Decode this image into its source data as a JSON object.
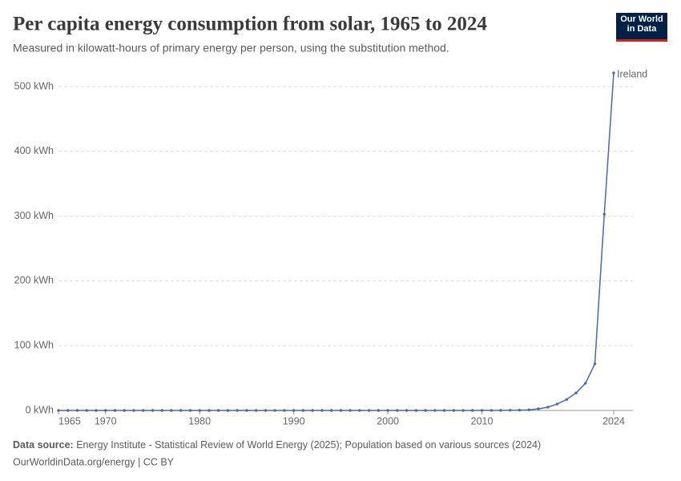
{
  "logo": "Our World in Data",
  "chart_data": {
    "type": "line",
    "title": "Per capita energy consumption from solar, 1965 to 2024",
    "subtitle": "Measured in kilowatt-hours of primary energy per person, using the substitution method.",
    "source_label": "Data source:",
    "source": "Energy Institute - Statistical Review of World Energy (2025); Population based on various sources (2024)",
    "footer": "OurWorldinData.org/energy | CC BY",
    "x": [
      1965,
      1966,
      1967,
      1968,
      1969,
      1970,
      1971,
      1972,
      1973,
      1974,
      1975,
      1976,
      1977,
      1978,
      1979,
      1980,
      1981,
      1982,
      1983,
      1984,
      1985,
      1986,
      1987,
      1988,
      1989,
      1990,
      1991,
      1992,
      1993,
      1994,
      1995,
      1996,
      1997,
      1998,
      1999,
      2000,
      2001,
      2002,
      2003,
      2004,
      2005,
      2006,
      2007,
      2008,
      2009,
      2010,
      2011,
      2012,
      2013,
      2014,
      2015,
      2016,
      2017,
      2018,
      2019,
      2020,
      2021,
      2022,
      2023,
      2024
    ],
    "series": [
      {
        "name": "Ireland",
        "color": "#4c6a9c",
        "values": [
          0,
          0,
          0,
          0,
          0,
          0,
          0,
          0,
          0,
          0,
          0,
          0,
          0,
          0,
          0,
          0,
          0,
          0,
          0,
          0,
          0,
          0,
          0,
          0,
          0,
          0,
          0,
          0,
          0,
          0,
          0,
          0,
          0,
          0,
          0,
          0,
          0,
          0,
          0,
          0,
          0,
          0,
          0,
          0,
          0,
          0.1,
          0.1,
          0.2,
          0.3,
          0.5,
          1,
          2.5,
          5,
          10,
          17,
          27,
          42,
          72,
          303,
          521
        ]
      }
    ],
    "xlim": [
      1965,
      2024
    ],
    "ylim": [
      0,
      521
    ],
    "xticks": [
      1965,
      1970,
      1980,
      1990,
      2000,
      2010,
      2024
    ],
    "yticks": [
      {
        "value": 0,
        "label": "0 kWh"
      },
      {
        "value": 100,
        "label": "100 kWh"
      },
      {
        "value": 200,
        "label": "200 kWh"
      },
      {
        "value": 300,
        "label": "300 kWh"
      },
      {
        "value": 400,
        "label": "400 kWh"
      },
      {
        "value": 500,
        "label": "500 kWh"
      }
    ],
    "grid": true
  }
}
